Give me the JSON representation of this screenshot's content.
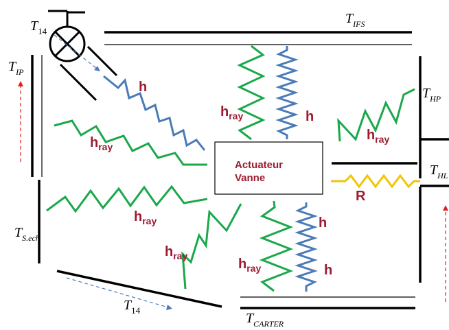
{
  "colors": {
    "wall": "#000000",
    "radiation": "#1aa84a",
    "convection": "#4a7ab8",
    "conduction": "#f2c500",
    "label": "#9b1b30",
    "flow_dashed_blue": "#4a7ab8",
    "flow_dashed_red": "#e02020"
  },
  "icons": {
    "valve": "valve-icon"
  },
  "temperatures": {
    "t14_top": {
      "base": "T",
      "sub": "14"
    },
    "t_ifs": {
      "base": "T",
      "sub": "IFS"
    },
    "t_ip": {
      "base": "T",
      "sub": "IP"
    },
    "t_hp": {
      "base": "T",
      "sub": "HP"
    },
    "t_hl": {
      "base": "T",
      "sub": "HL"
    },
    "t_sech": {
      "base": "T",
      "sub": "S.ech"
    },
    "t14_bottom": {
      "base": "T",
      "sub": "14"
    },
    "t_carter": {
      "base": "T",
      "sub": "CARTER"
    }
  },
  "actuator": {
    "line1": "Actuateur",
    "line2": "Vanne"
  },
  "coefficients": {
    "h": "h",
    "h_ray_base": "h",
    "h_ray_sub": "ray",
    "r": "R"
  }
}
